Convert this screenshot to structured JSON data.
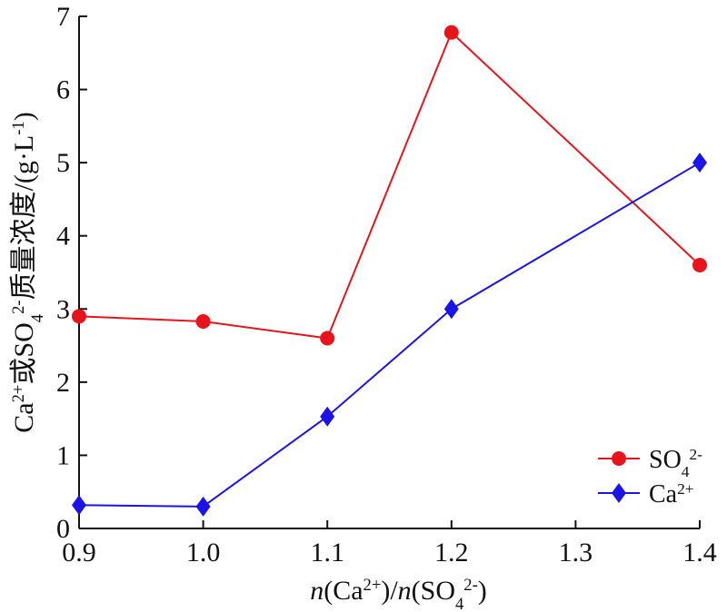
{
  "chart_data": {
    "type": "line",
    "xlim": [
      0.9,
      1.4
    ],
    "ylim": [
      0,
      7
    ],
    "x_ticks": [
      0.9,
      1.0,
      1.1,
      1.2,
      1.3,
      1.4
    ],
    "x_tick_labels": [
      "0.9",
      "1.0",
      "1.1",
      "1.2",
      "1.3",
      "1.4"
    ],
    "y_ticks": [
      0,
      1,
      2,
      3,
      4,
      5,
      6,
      7
    ],
    "y_tick_labels": [
      "0",
      "1",
      "2",
      "3",
      "4",
      "5",
      "6",
      "7"
    ],
    "xlabel": {
      "parts": [
        {
          "t": "n",
          "italic": true
        },
        {
          "t": "(Ca"
        },
        {
          "t": "2+",
          "sup": true
        },
        {
          "t": ")/"
        },
        {
          "t": "n",
          "italic": true
        },
        {
          "t": "(SO"
        },
        {
          "t": "4",
          "sub": true
        },
        {
          "t": "2-",
          "sup": true
        },
        {
          "t": ")"
        }
      ]
    },
    "ylabel": {
      "parts": [
        {
          "t": "Ca"
        },
        {
          "t": "2+",
          "sup": true
        },
        {
          "t": "或SO"
        },
        {
          "t": "4",
          "sub": true
        },
        {
          "t": "2-",
          "sup": true
        },
        {
          "t": "质量浓度/(g·L"
        },
        {
          "t": "-1",
          "sup": true
        },
        {
          "t": ")"
        }
      ]
    },
    "grid": false,
    "legend_position": "bottom-right",
    "series": [
      {
        "name": "SO42-",
        "name_parts": [
          {
            "t": "SO"
          },
          {
            "t": "4",
            "sub": true
          },
          {
            "t": "2-",
            "sup": true
          }
        ],
        "color": "#e8141b",
        "marker": "circle",
        "x": [
          0.9,
          1.0,
          1.1,
          1.2,
          1.4
        ],
        "y": [
          2.9,
          2.83,
          2.6,
          6.78,
          3.6
        ]
      },
      {
        "name": "Ca2+",
        "name_parts": [
          {
            "t": "Ca"
          },
          {
            "t": "2+",
            "sup": true
          }
        ],
        "color": "#1a14e8",
        "marker": "diamond",
        "x": [
          0.9,
          1.0,
          1.1,
          1.2,
          1.4
        ],
        "y": [
          0.32,
          0.3,
          1.53,
          3.0,
          5.0
        ]
      }
    ]
  }
}
